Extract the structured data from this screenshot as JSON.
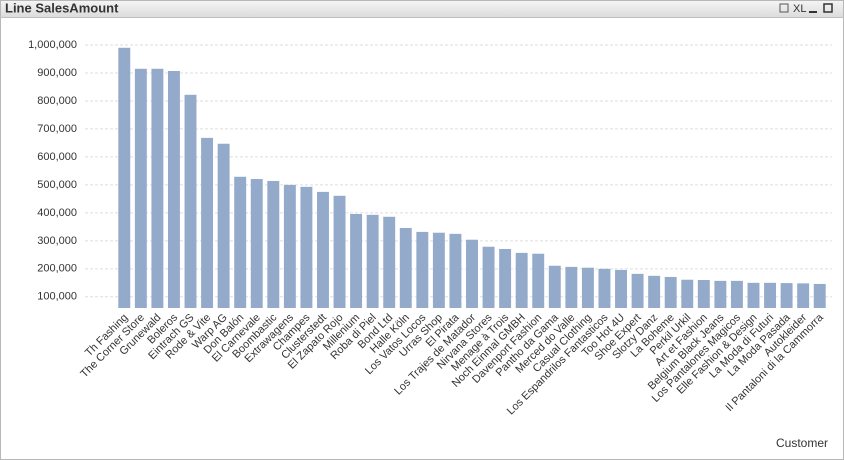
{
  "header": {
    "title": "Line SalesAmount",
    "export": "XL"
  },
  "chart_data": {
    "type": "bar",
    "color": "#93aacb",
    "grid": true,
    "x_label": "Customer",
    "categories": [
      "Th Fashing",
      "The Corner Store",
      "Grunewald",
      "Boleros",
      "Eintrach GS",
      "Rode & Vite",
      "Warp AG",
      "Don Balón",
      "El Carnevale",
      "Boombastic",
      "Extrawagens",
      "Champes",
      "Clusterstedt",
      "El Zapato Rojo",
      "Millenium",
      "Roba di Piel",
      "Bond Ltd",
      "Halle Köln",
      "Los Vatos Locos",
      "Urras Shop",
      "El Pirata",
      "Los Trajes de Matador",
      "Nirvana Stores",
      "Menage à Trois",
      "Noch Einmal GMBH",
      "Davenport Fashion",
      "Pantho da Gama",
      "Merced do Valle",
      "Casual Clothing",
      "Los Espandrilos Fantasticos",
      "Too Hot 4U",
      "Shoe Expert",
      "Slotzy Danz",
      "La Boheme",
      "Perkil Urkil",
      "Art et Fashion",
      "Belgium Black Jeans",
      "Los Pantalones Magicos",
      "Elle Fashion & Design",
      "La Moda di Futuri",
      "La Moda Pasada",
      "Autokleider",
      "Il Pantaloni di la Cammorra"
    ],
    "values": [
      990000,
      915000,
      915000,
      907000,
      822000,
      668000,
      647000,
      529000,
      521000,
      514000,
      500000,
      493000,
      475000,
      461000,
      396000,
      393000,
      386000,
      346000,
      332000,
      329000,
      325000,
      304000,
      279000,
      271000,
      257000,
      254000,
      211000,
      207000,
      204000,
      200000,
      196000,
      182000,
      175000,
      171000,
      161000,
      160000,
      157000,
      157000,
      150000,
      150000,
      149000,
      148000,
      146000
    ],
    "ylim": [
      60000,
      1050000
    ],
    "yticks": [
      {
        "value": 100000,
        "label": "100,000"
      },
      {
        "value": 200000,
        "label": "200,000"
      },
      {
        "value": 300000,
        "label": "300,000"
      },
      {
        "value": 400000,
        "label": "400,000"
      },
      {
        "value": 500000,
        "label": "500,000"
      },
      {
        "value": 600000,
        "label": "600,000"
      },
      {
        "value": 700000,
        "label": "700,000"
      },
      {
        "value": 800000,
        "label": "800,000"
      },
      {
        "value": 900000,
        "label": "900,000"
      },
      {
        "value": 1000000,
        "label": "1,000,000"
      }
    ]
  }
}
